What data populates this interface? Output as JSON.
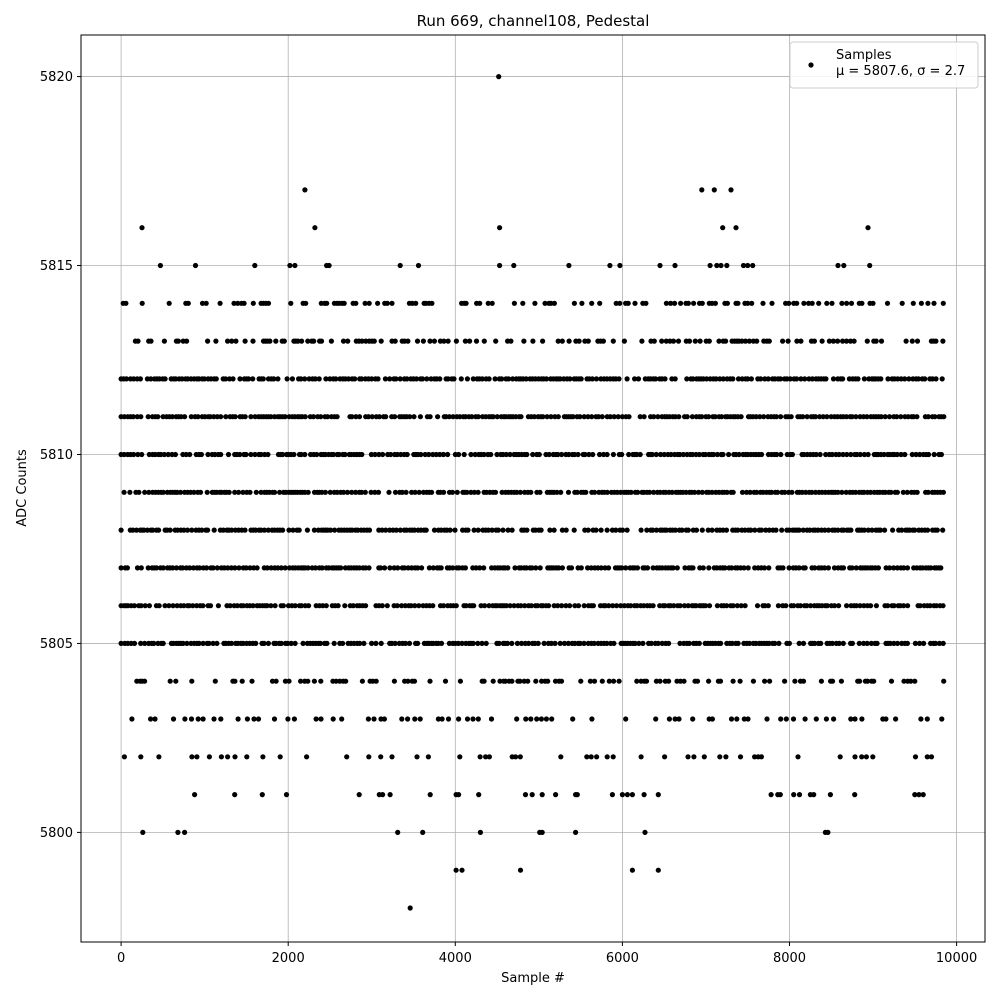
{
  "chart_data": {
    "type": "scatter",
    "title": "Run 669, channel108, Pedestal",
    "xlabel": "Sample #",
    "ylabel": "ADC Counts",
    "xlim": [
      -480,
      10340
    ],
    "ylim": [
      5797.1,
      5821.1
    ],
    "xticks": [
      0,
      2000,
      4000,
      6000,
      8000,
      10000
    ],
    "xtick_labels": [
      "0",
      "2000",
      "4000",
      "6000",
      "8000",
      "10000"
    ],
    "yticks": [
      5800,
      5805,
      5810,
      5815,
      5820
    ],
    "ytick_labels": [
      "5800",
      "5805",
      "5810",
      "5815",
      "5820"
    ],
    "grid": true,
    "legend": {
      "placement": "top-right",
      "entries": [
        {
          "label": "Samples",
          "sublabel": "μ = 5807.6, σ = 2.7",
          "marker_color": "#000000"
        }
      ]
    },
    "series": [
      {
        "name": "Samples",
        "color": "#000000",
        "x_range": [
          0,
          9850
        ],
        "dense_levels": [
          5804,
          5805,
          5806,
          5807,
          5808,
          5809,
          5810,
          5811,
          5812,
          5813,
          5814
        ],
        "sparse_levels": [
          5802,
          5803
        ],
        "outliers": [
          [
            4520,
            5820
          ],
          [
            2200,
            5817
          ],
          [
            6950,
            5817
          ],
          [
            7100,
            5817
          ],
          [
            7300,
            5817
          ],
          [
            250,
            5816
          ],
          [
            2320,
            5816
          ],
          [
            4530,
            5816
          ],
          [
            7200,
            5816
          ],
          [
            7360,
            5816
          ],
          [
            8940,
            5816
          ],
          [
            470,
            5815
          ],
          [
            890,
            5815
          ],
          [
            1600,
            5815
          ],
          [
            2020,
            5815
          ],
          [
            2080,
            5815
          ],
          [
            2460,
            5815
          ],
          [
            2490,
            5815
          ],
          [
            3340,
            5815
          ],
          [
            3560,
            5815
          ],
          [
            4530,
            5815
          ],
          [
            4700,
            5815
          ],
          [
            5360,
            5815
          ],
          [
            5850,
            5815
          ],
          [
            5970,
            5815
          ],
          [
            6450,
            5815
          ],
          [
            6630,
            5815
          ],
          [
            7050,
            5815
          ],
          [
            7130,
            5815
          ],
          [
            7180,
            5815
          ],
          [
            7250,
            5815
          ],
          [
            7450,
            5815
          ],
          [
            7500,
            5815
          ],
          [
            7560,
            5815
          ],
          [
            8580,
            5815
          ],
          [
            8650,
            5815
          ],
          [
            8960,
            5815
          ],
          [
            880,
            5801
          ],
          [
            1360,
            5801
          ],
          [
            1690,
            5801
          ],
          [
            1980,
            5801
          ],
          [
            2850,
            5801
          ],
          [
            3090,
            5801
          ],
          [
            3130,
            5801
          ],
          [
            3220,
            5801
          ],
          [
            3700,
            5801
          ],
          [
            4010,
            5801
          ],
          [
            4040,
            5801
          ],
          [
            4280,
            5801
          ],
          [
            4840,
            5801
          ],
          [
            4920,
            5801
          ],
          [
            5040,
            5801
          ],
          [
            5200,
            5801
          ],
          [
            5440,
            5801
          ],
          [
            5460,
            5801
          ],
          [
            5880,
            5801
          ],
          [
            6000,
            5801
          ],
          [
            6060,
            5801
          ],
          [
            6120,
            5801
          ],
          [
            6260,
            5801
          ],
          [
            6430,
            5801
          ],
          [
            7780,
            5801
          ],
          [
            7860,
            5801
          ],
          [
            7890,
            5801
          ],
          [
            8050,
            5801
          ],
          [
            8120,
            5801
          ],
          [
            8250,
            5801
          ],
          [
            8290,
            5801
          ],
          [
            8490,
            5801
          ],
          [
            8780,
            5801
          ],
          [
            9500,
            5801
          ],
          [
            9550,
            5801
          ],
          [
            9600,
            5801
          ],
          [
            260,
            5800
          ],
          [
            680,
            5800
          ],
          [
            760,
            5800
          ],
          [
            3310,
            5800
          ],
          [
            3610,
            5800
          ],
          [
            4300,
            5800
          ],
          [
            5010,
            5800
          ],
          [
            5040,
            5800
          ],
          [
            5440,
            5800
          ],
          [
            6270,
            5800
          ],
          [
            8430,
            5800
          ],
          [
            8460,
            5800
          ],
          [
            4010,
            5799
          ],
          [
            4080,
            5799
          ],
          [
            4780,
            5799
          ],
          [
            6120,
            5799
          ],
          [
            6430,
            5799
          ],
          [
            3460,
            5798
          ]
        ]
      }
    ]
  }
}
